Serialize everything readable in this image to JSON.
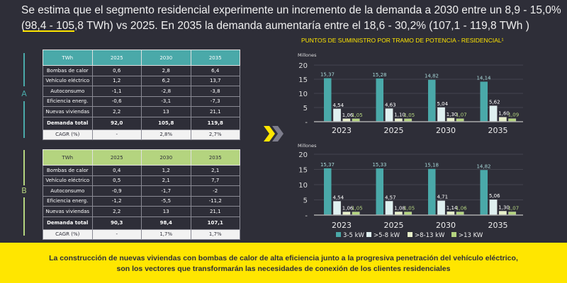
{
  "headline": {
    "line1": "Se estima que el segmento residencial experimente un incremento de la demanda a 2030 entre un 8,9 - 15,0%",
    "line2": "(98,4 - 105,8 TWh) vs 2025. En 2035 la demanda aumentaría entre el 18,6 - 30,2% (107,1 - 119,8 TWh )"
  },
  "scenarios": {
    "a_label": "A",
    "b_label": "B"
  },
  "table_a": {
    "headers": [
      "TWh",
      "2025",
      "2030",
      "2035"
    ],
    "rows": [
      [
        "Bombas de calor",
        "0,6",
        "2,8",
        "6,4"
      ],
      [
        "Vehículo eléctrico",
        "1,2",
        "6,2",
        "13,7"
      ],
      [
        "Autoconsumo",
        "-1,1",
        "-2,8",
        "-3,8"
      ],
      [
        "Eficiencia energ.",
        "-0,6",
        "-3,1",
        "-7,3"
      ],
      [
        "Nuevas viviendas",
        "2,2",
        "13",
        "21,1"
      ],
      [
        "Demanda total",
        "92,0",
        "105,8",
        "119,8"
      ],
      [
        "CAGR (%)",
        "-",
        "2,8%",
        "2,7%"
      ]
    ]
  },
  "table_b": {
    "headers": [
      "TWh",
      "2025",
      "2030",
      "2035"
    ],
    "rows": [
      [
        "Bombas de calor",
        "0,4",
        "1,2",
        "2,1"
      ],
      [
        "Vehículo eléctrico",
        "0,5",
        "2,1",
        "7,7"
      ],
      [
        "Autoconsumo",
        "-0,9",
        "-1,7",
        "-2"
      ],
      [
        "Eficiencia energ.",
        "-1,2",
        "-5,5",
        "-11,2"
      ],
      [
        "Nuevas viviendas",
        "2,2",
        "13",
        "21,1"
      ],
      [
        "Demanda total",
        "90,3",
        "98,4",
        "107,1"
      ],
      [
        "CAGR (%)",
        "-",
        "1,7%",
        "1,7%"
      ]
    ]
  },
  "colors": {
    "teal": "#4aa9a9",
    "white": "#dff0f0",
    "cream": "#e6efc9",
    "green": "#b4d47f",
    "yellow": "#ffe600"
  },
  "chart_data": [
    {
      "type": "bar",
      "title": "PUNTOS DE SUMINISTRO POR TRAMO DE POTENCIA - RESIDENCIAL¹",
      "ylabel": "Millones",
      "ylim": [
        0,
        20
      ],
      "yticks": [
        "-",
        "5",
        "10",
        "15",
        "20"
      ],
      "categories": [
        "2023",
        "2025",
        "2030",
        "2035"
      ],
      "series": [
        {
          "name": "3-5 kW",
          "values": [
            15.37,
            15.28,
            14.82,
            14.14
          ],
          "labels": [
            "15,37",
            "15,28",
            "14,82",
            "14,14"
          ]
        },
        {
          "name": ">5-8 kW",
          "values": [
            4.54,
            4.63,
            5.04,
            5.62
          ],
          "labels": [
            "4,54",
            "4,63",
            "5,04",
            "5,62"
          ]
        },
        {
          "name": ">8-13 kW",
          "values": [
            1.06,
            1.1,
            1.3,
            1.6
          ],
          "labels": [
            "1,06",
            "1,10",
            "1,30",
            "1,60"
          ]
        },
        {
          "name": ">13 KW",
          "values": [
            1.05,
            1.05,
            1.07,
            1.09
          ],
          "labels": [
            "1,05",
            "1,05",
            "1,07",
            "1,09"
          ]
        }
      ]
    },
    {
      "type": "bar",
      "title": "",
      "ylabel": "Millones",
      "ylim": [
        0,
        20
      ],
      "yticks": [
        "-",
        "5",
        "10",
        "15",
        "20"
      ],
      "categories": [
        "2023",
        "2025",
        "2030",
        "2035"
      ],
      "series": [
        {
          "name": "3-5 kW",
          "values": [
            15.37,
            15.33,
            15.18,
            14.82
          ],
          "labels": [
            "15,37",
            "15,33",
            "15,18",
            "14,82"
          ]
        },
        {
          "name": ">5-8 kW",
          "values": [
            4.54,
            4.57,
            4.71,
            5.06
          ],
          "labels": [
            "4,54",
            "4,57",
            "4,71",
            "5,06"
          ]
        },
        {
          "name": ">8-13 kW",
          "values": [
            1.06,
            1.08,
            1.14,
            1.3
          ],
          "labels": [
            "1,06",
            "1,08",
            "1,14",
            "1,30"
          ]
        },
        {
          "name": ">13 KW",
          "values": [
            1.05,
            1.05,
            1.06,
            1.07
          ],
          "labels": [
            "1,05",
            "1,05",
            "1,06",
            "1,07"
          ]
        }
      ]
    }
  ],
  "footer": {
    "line1": "La construcción de nuevas viviendas con bombas de calor de alta eficiencia junto a la progresiva penetración del vehículo eléctrico,",
    "line2": "son los vectores que transformarán las necesidades de conexión de los clientes residenciales"
  }
}
